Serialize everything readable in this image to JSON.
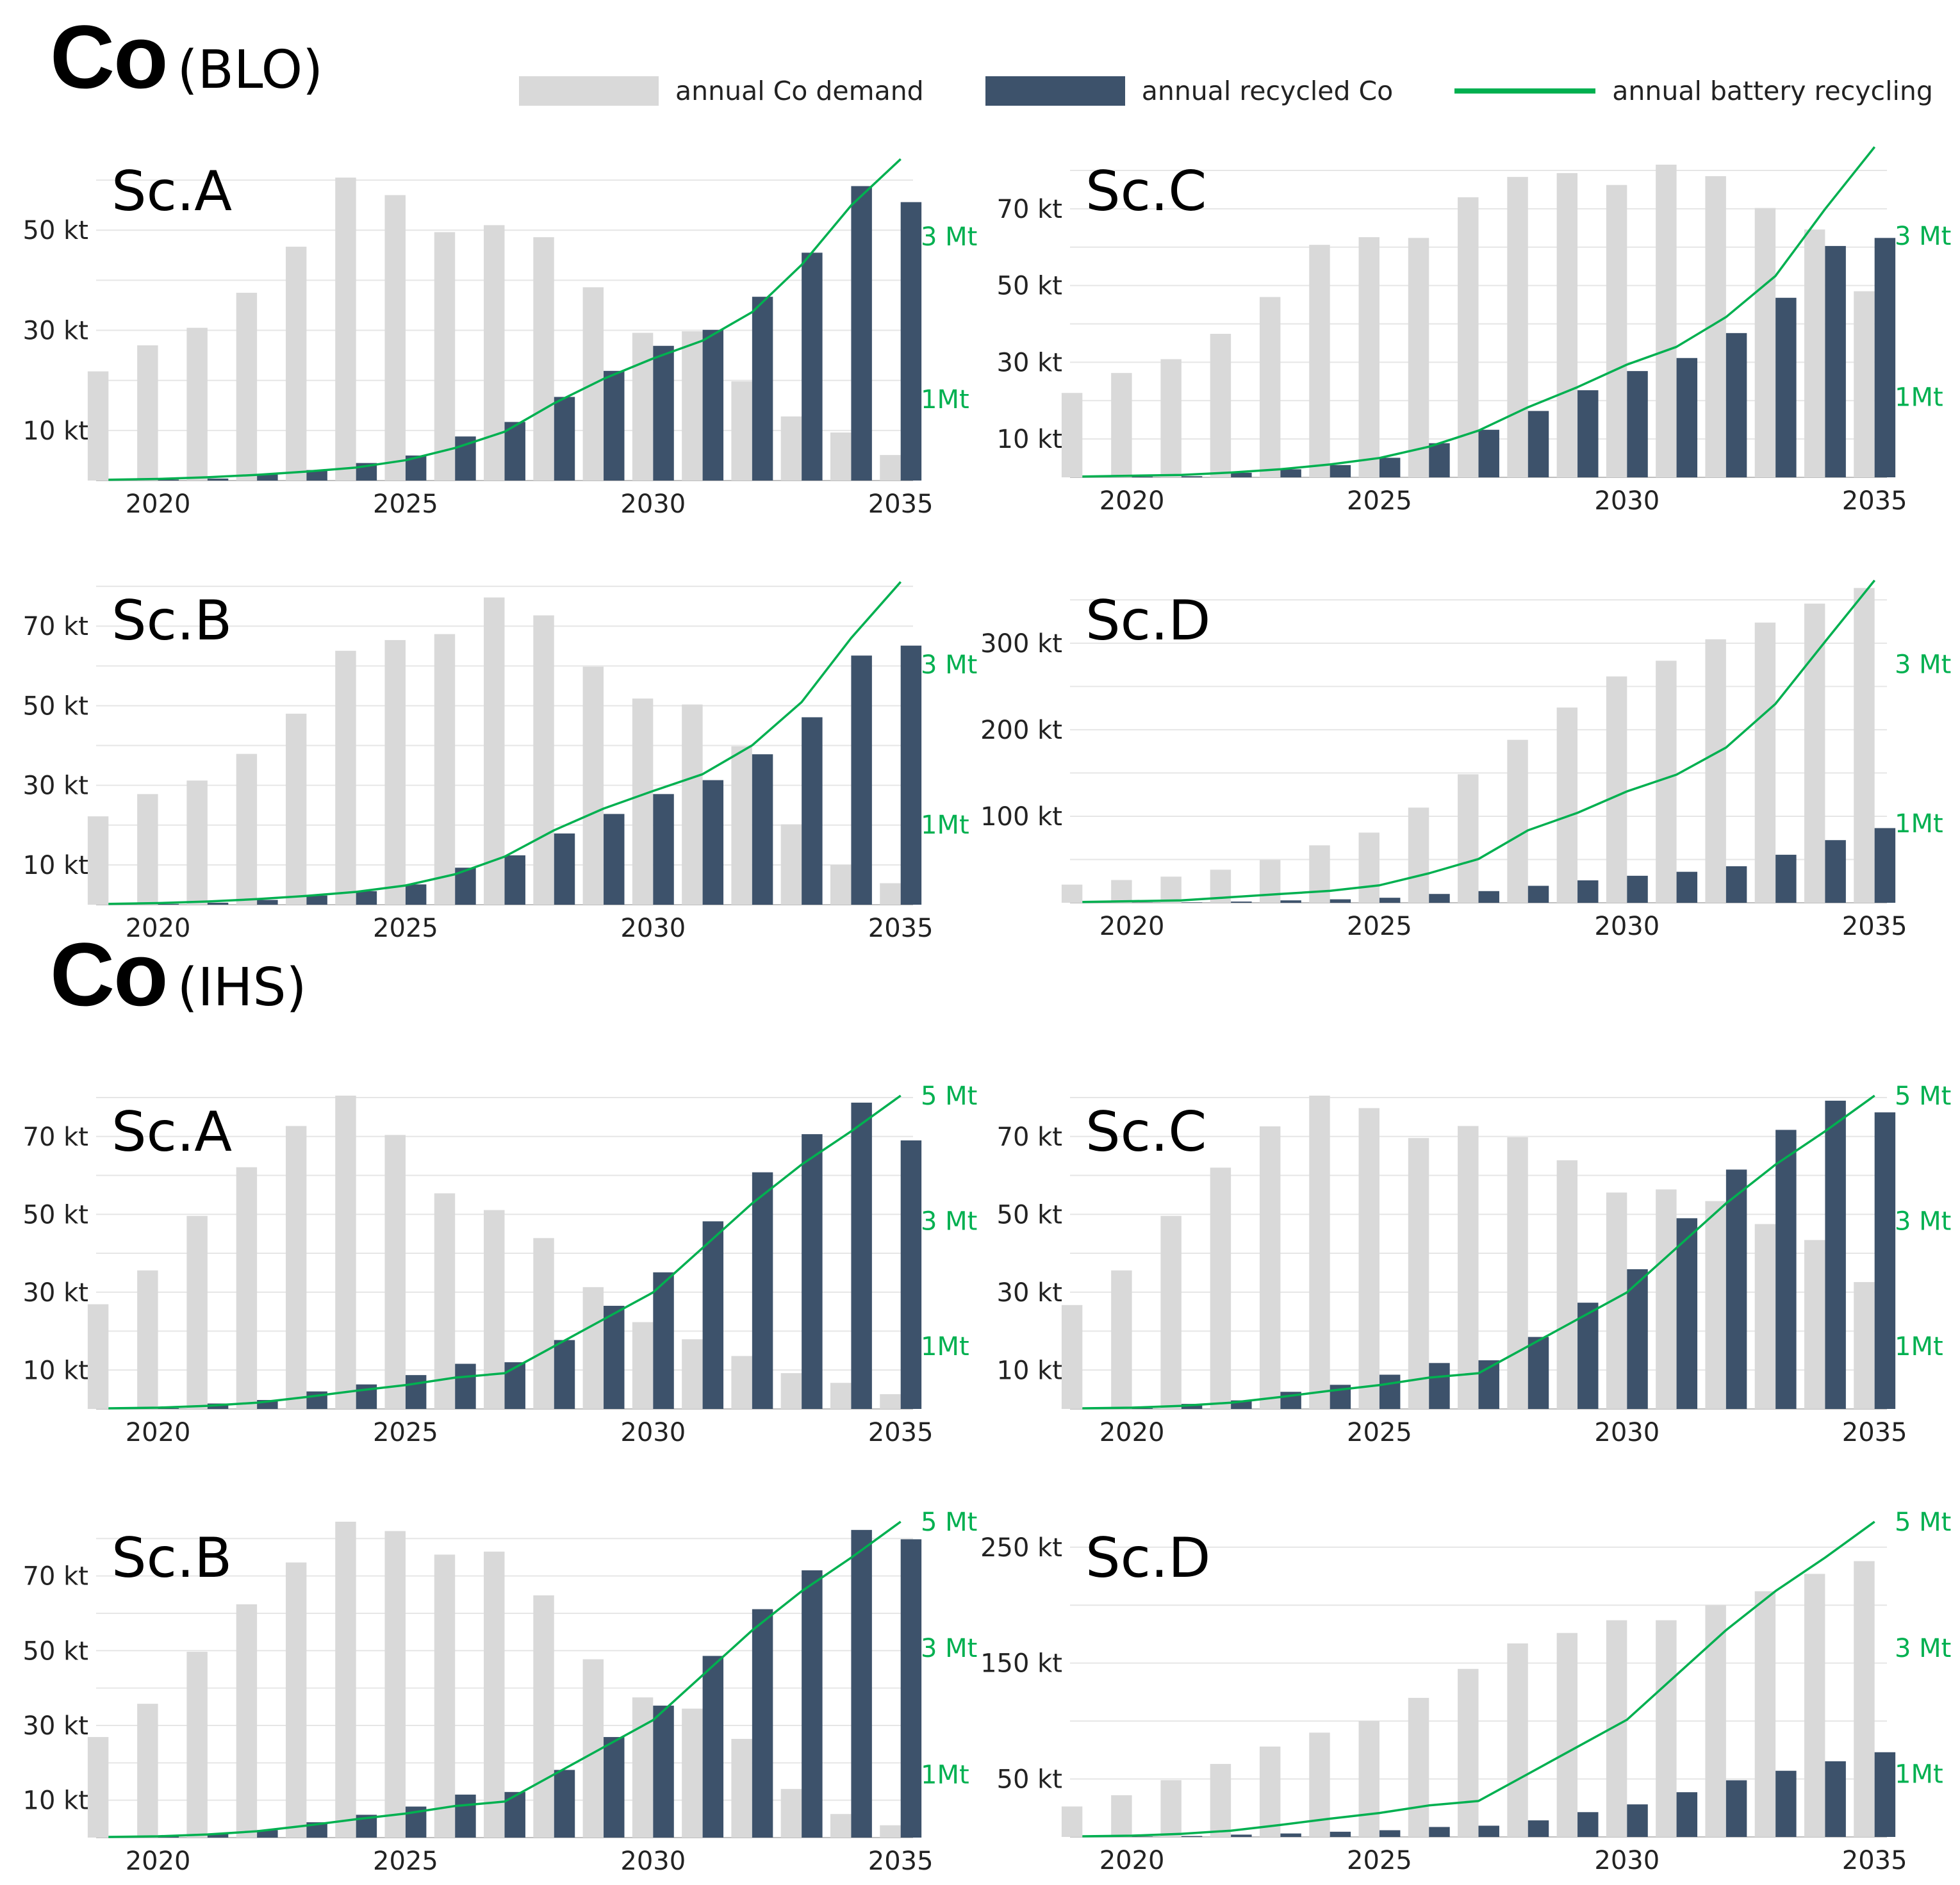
{
  "sections": [
    {
      "id": "blo",
      "element": "Co",
      "source": "(BLO)"
    },
    {
      "id": "ihs",
      "element": "Co",
      "source": "(IHS)"
    }
  ],
  "legend": {
    "demand": "annual Co demand",
    "recycled": "annual recycled Co",
    "battery": "annual battery recycling"
  },
  "colors": {
    "demand": "#d9d9d9",
    "recycled": "#3d526b",
    "battery": "#00b050",
    "grid": "#e6e6e6",
    "text": "#222222"
  },
  "chart_data": [
    {
      "type": "bar",
      "section": "blo",
      "title": "Sc.A",
      "years": [
        2019,
        2020,
        2021,
        2022,
        2023,
        2024,
        2025,
        2026,
        2027,
        2028,
        2029,
        2030,
        2031,
        2032,
        2033,
        2034,
        2035
      ],
      "x_ticks": [
        "2020",
        "2025",
        "2030",
        "2035"
      ],
      "y_ticks": [
        {
          "v": 10,
          "label": "10 kt"
        },
        {
          "v": 30,
          "label": "30 kt"
        },
        {
          "v": 50,
          "label": "50 kt"
        }
      ],
      "ylim": [
        0,
        65
      ],
      "y2lim": [
        0,
        4.0
      ],
      "y2_ticks": [
        {
          "v": 1,
          "label": "1Mt"
        },
        {
          "v": 3,
          "label": "3 Mt"
        }
      ],
      "series": [
        {
          "name": "annual Co demand",
          "values": [
            21.8,
            27,
            30.5,
            37.5,
            46.7,
            60.5,
            57,
            49.6,
            51,
            48.6,
            38.6,
            29.5,
            29.8,
            19.8,
            12.8,
            9.6,
            5.1
          ]
        },
        {
          "name": "annual recycled Co",
          "values": [
            0.1,
            0.2,
            0.4,
            1.2,
            2.1,
            3.5,
            5,
            8.8,
            11.7,
            16.7,
            21.9,
            26.9,
            30.1,
            36.7,
            45.5,
            58.8,
            55.6
          ]
        },
        {
          "name": "annual battery recycling",
          "values": [
            0.01,
            0.02,
            0.04,
            0.07,
            0.11,
            0.16,
            0.25,
            0.4,
            0.6,
            0.95,
            1.25,
            1.5,
            1.72,
            2.07,
            2.65,
            3.38,
            3.95
          ]
        }
      ]
    },
    {
      "type": "bar",
      "section": "blo",
      "title": "Sc.C",
      "years": [
        2019,
        2020,
        2021,
        2022,
        2023,
        2024,
        2025,
        2026,
        2027,
        2028,
        2029,
        2030,
        2031,
        2032,
        2033,
        2034,
        2035
      ],
      "x_ticks": [
        "2020",
        "2025",
        "2030",
        "2035"
      ],
      "y_ticks": [
        {
          "v": 10,
          "label": "10 kt"
        },
        {
          "v": 30,
          "label": "30 kt"
        },
        {
          "v": 50,
          "label": "50 kt"
        },
        {
          "v": 70,
          "label": "70 kt"
        }
      ],
      "ylim": [
        0,
        84
      ],
      "y2lim": [
        0,
        4.0
      ],
      "y2_ticks": [
        {
          "v": 1,
          "label": "1Mt"
        },
        {
          "v": 3,
          "label": "3 Mt"
        }
      ],
      "series": [
        {
          "name": "annual Co demand",
          "values": [
            22,
            27.2,
            30.8,
            37.4,
            47,
            60.6,
            62.6,
            62.4,
            73,
            78.3,
            79.3,
            76.2,
            81.5,
            78.5,
            70.2,
            64.6,
            48.5
          ]
        },
        {
          "name": "annual recycled Co",
          "values": [
            0.1,
            0.2,
            0.3,
            1.2,
            2.1,
            3.2,
            5.1,
            8.9,
            12.4,
            17.3,
            22.7,
            27.7,
            31.1,
            37.6,
            46.8,
            60.3,
            62.4
          ]
        },
        {
          "name": "annual battery recycling",
          "values": [
            0.01,
            0.02,
            0.03,
            0.06,
            0.1,
            0.16,
            0.24,
            0.38,
            0.58,
            0.87,
            1.12,
            1.4,
            1.62,
            1.99,
            2.5,
            3.33,
            4.1
          ]
        }
      ]
    },
    {
      "type": "bar",
      "section": "blo",
      "title": "Sc.B",
      "years": [
        2019,
        2020,
        2021,
        2022,
        2023,
        2024,
        2025,
        2026,
        2027,
        2028,
        2029,
        2030,
        2031,
        2032,
        2033,
        2034,
        2035
      ],
      "x_ticks": [
        "2020",
        "2025",
        "2030",
        "2035"
      ],
      "y_ticks": [
        {
          "v": 10,
          "label": "10 kt"
        },
        {
          "v": 30,
          "label": "30 kt"
        },
        {
          "v": 50,
          "label": "50 kt"
        },
        {
          "v": 70,
          "label": "70 kt"
        }
      ],
      "ylim": [
        0,
        80.5
      ],
      "y2lim": [
        0,
        4.0
      ],
      "y2_ticks": [
        {
          "v": 1,
          "label": "1Mt"
        },
        {
          "v": 3,
          "label": "3 Mt"
        }
      ],
      "series": [
        {
          "name": "annual Co demand",
          "values": [
            22.2,
            27.8,
            31.2,
            37.9,
            48,
            63.8,
            66.5,
            68,
            77.2,
            72.7,
            59.8,
            51.8,
            50.3,
            39.8,
            20.2,
            10,
            5.4
          ]
        },
        {
          "name": "annual recycled Co",
          "values": [
            0.1,
            0.2,
            0.5,
            1.2,
            2.3,
            3.4,
            5.1,
            9.3,
            12.4,
            17.9,
            22.8,
            27.8,
            31.3,
            37.8,
            47.1,
            62.6,
            65.1
          ]
        },
        {
          "name": "annual battery recycling",
          "values": [
            0.01,
            0.02,
            0.04,
            0.07,
            0.11,
            0.16,
            0.24,
            0.38,
            0.6,
            0.93,
            1.2,
            1.42,
            1.63,
            1.99,
            2.53,
            3.33,
            4.03
          ]
        }
      ]
    },
    {
      "type": "bar",
      "section": "blo",
      "title": "Sc.D",
      "years": [
        2019,
        2020,
        2021,
        2022,
        2023,
        2024,
        2025,
        2026,
        2027,
        2028,
        2029,
        2030,
        2031,
        2032,
        2033,
        2034,
        2035
      ],
      "x_ticks": [
        "2020",
        "2025",
        "2030",
        "2035"
      ],
      "y_ticks": [
        {
          "v": 100,
          "label": "100 kt"
        },
        {
          "v": 200,
          "label": "200 kt"
        },
        {
          "v": 300,
          "label": "300 kt"
        }
      ],
      "ylim": [
        0,
        368
      ],
      "y2lim": [
        0,
        4.0
      ],
      "y2_ticks": [
        {
          "v": 1,
          "label": "1Mt"
        },
        {
          "v": 3,
          "label": "3 Mt"
        }
      ],
      "series": [
        {
          "name": "annual Co demand",
          "values": [
            21,
            26.3,
            30.2,
            38.2,
            49.4,
            66.4,
            81.1,
            110,
            148.5,
            188.3,
            225.6,
            261.6,
            279.7,
            304.5,
            323.8,
            345.7,
            363.8
          ]
        },
        {
          "name": "annual recycled Co",
          "values": [
            0.1,
            0.2,
            0.4,
            1.4,
            2.8,
            4,
            5.8,
            10.2,
            13.5,
            19.6,
            25.9,
            31.2,
            35.8,
            42.2,
            55.5,
            72.4,
            86.3
          ]
        },
        {
          "name": "annual battery recycling",
          "values": [
            0.01,
            0.02,
            0.03,
            0.07,
            0.11,
            0.15,
            0.22,
            0.37,
            0.55,
            0.91,
            1.13,
            1.4,
            1.61,
            1.95,
            2.5,
            3.28,
            4.05
          ]
        }
      ]
    },
    {
      "type": "bar",
      "section": "ihs",
      "title": "Sc.A",
      "years": [
        2019,
        2020,
        2021,
        2022,
        2023,
        2024,
        2025,
        2026,
        2027,
        2028,
        2029,
        2030,
        2031,
        2032,
        2033,
        2034,
        2035
      ],
      "x_ticks": [
        "2020",
        "2025",
        "2030",
        "2035"
      ],
      "y_ticks": [
        {
          "v": 10,
          "label": "10 kt"
        },
        {
          "v": 30,
          "label": "30 kt"
        },
        {
          "v": 50,
          "label": "50 kt"
        },
        {
          "v": 70,
          "label": "70 kt"
        }
      ],
      "ylim": [
        0,
        80.5
      ],
      "y2lim": [
        0,
        5.0
      ],
      "y2_ticks": [
        {
          "v": 1,
          "label": "1Mt"
        },
        {
          "v": 3,
          "label": "3 Mt"
        },
        {
          "v": 5,
          "label": "5 Mt"
        }
      ],
      "series": [
        {
          "name": "annual Co demand",
          "values": [
            26.9,
            35.6,
            49.6,
            62.1,
            72.7,
            80.5,
            70.4,
            55.4,
            51.1,
            43.9,
            31.3,
            22.3,
            17.9,
            13.6,
            9.2,
            6.7,
            3.8
          ]
        },
        {
          "name": "annual recycled Co",
          "values": [
            0.1,
            0.2,
            1.4,
            2.3,
            4.5,
            6.3,
            8.7,
            11.6,
            12,
            17.7,
            26.5,
            35.1,
            48.2,
            60.8,
            70.6,
            78.7,
            69
          ]
        },
        {
          "name": "annual battery recycling",
          "values": [
            0.01,
            0.02,
            0.05,
            0.1,
            0.19,
            0.29,
            0.38,
            0.5,
            0.57,
            1.0,
            1.43,
            1.86,
            2.57,
            3.28,
            3.9,
            4.43,
            5.0
          ]
        }
      ]
    },
    {
      "type": "bar",
      "section": "ihs",
      "title": "Sc.C",
      "years": [
        2019,
        2020,
        2021,
        2022,
        2023,
        2024,
        2025,
        2026,
        2027,
        2028,
        2029,
        2030,
        2031,
        2032,
        2033,
        2034,
        2035
      ],
      "x_ticks": [
        "2020",
        "2025",
        "2030",
        "2035"
      ],
      "y_ticks": [
        {
          "v": 10,
          "label": "10 kt"
        },
        {
          "v": 30,
          "label": "30 kt"
        },
        {
          "v": 50,
          "label": "50 kt"
        },
        {
          "v": 70,
          "label": "70 kt"
        }
      ],
      "ylim": [
        0,
        80.5
      ],
      "y2lim": [
        0,
        5.0
      ],
      "y2_ticks": [
        {
          "v": 1,
          "label": "1Mt"
        },
        {
          "v": 3,
          "label": "3 Mt"
        },
        {
          "v": 5,
          "label": "5 Mt"
        }
      ],
      "series": [
        {
          "name": "annual Co demand",
          "values": [
            26.7,
            35.6,
            49.6,
            62,
            72.6,
            80.5,
            77.3,
            69.6,
            72.7,
            69.8,
            63.9,
            55.6,
            56.4,
            53.4,
            47.5,
            43.4,
            32.6
          ]
        },
        {
          "name": "annual recycled Co",
          "values": [
            0.1,
            0.2,
            1.3,
            2.2,
            4.4,
            6.2,
            8.8,
            11.8,
            12.5,
            18.5,
            27.3,
            35.9,
            49,
            61.5,
            71.7,
            79.2,
            76.2
          ]
        },
        {
          "name": "annual battery recycling",
          "values": [
            0.01,
            0.02,
            0.05,
            0.1,
            0.19,
            0.29,
            0.38,
            0.5,
            0.57,
            1.0,
            1.43,
            1.86,
            2.57,
            3.28,
            3.9,
            4.43,
            5.0
          ]
        }
      ]
    },
    {
      "type": "bar",
      "section": "ihs",
      "title": "Sc.B",
      "years": [
        2019,
        2020,
        2021,
        2022,
        2023,
        2024,
        2025,
        2026,
        2027,
        2028,
        2029,
        2030,
        2031,
        2032,
        2033,
        2034,
        2035
      ],
      "x_ticks": [
        "2020",
        "2025",
        "2030",
        "2035"
      ],
      "y_ticks": [
        {
          "v": 10,
          "label": "10 kt"
        },
        {
          "v": 30,
          "label": "30 kt"
        },
        {
          "v": 50,
          "label": "50 kt"
        },
        {
          "v": 70,
          "label": "70 kt"
        }
      ],
      "ylim": [
        0,
        84.5
      ],
      "y2lim": [
        0,
        5.0
      ],
      "y2_ticks": [
        {
          "v": 1,
          "label": "1Mt"
        },
        {
          "v": 3,
          "label": "3 Mt"
        },
        {
          "v": 5,
          "label": "5 Mt"
        }
      ],
      "series": [
        {
          "name": "annual Co demand",
          "values": [
            26.9,
            35.8,
            49.7,
            62.4,
            73.6,
            84.5,
            82,
            75.7,
            76.5,
            64.8,
            47.7,
            37.5,
            34.5,
            26.4,
            13,
            6.3,
            3.3
          ]
        },
        {
          "name": "annual recycled Co",
          "values": [
            0.1,
            0.3,
            1.1,
            2,
            4.1,
            6.1,
            8.3,
            11.5,
            12.2,
            18.1,
            26.9,
            35.3,
            48.6,
            61.1,
            71.5,
            82.3,
            79.8
          ]
        },
        {
          "name": "annual battery recycling",
          "values": [
            0.01,
            0.02,
            0.05,
            0.1,
            0.19,
            0.29,
            0.38,
            0.5,
            0.57,
            1.0,
            1.43,
            1.86,
            2.57,
            3.28,
            3.9,
            4.43,
            5.0
          ]
        }
      ]
    },
    {
      "type": "bar",
      "section": "ihs",
      "title": "Sc.D",
      "years": [
        2019,
        2020,
        2021,
        2022,
        2023,
        2024,
        2025,
        2026,
        2027,
        2028,
        2029,
        2030,
        2031,
        2032,
        2033,
        2034,
        2035
      ],
      "x_ticks": [
        "2020",
        "2025",
        "2030",
        "2035"
      ],
      "y_ticks": [
        {
          "v": 50,
          "label": "50 kt"
        },
        {
          "v": 150,
          "label": "150 kt"
        },
        {
          "v": 250,
          "label": "250 kt"
        }
      ],
      "ylim": [
        0,
        272
      ],
      "y2lim": [
        0,
        5.0
      ],
      "y2_ticks": [
        {
          "v": 1,
          "label": "1Mt"
        },
        {
          "v": 3,
          "label": "3 Mt"
        },
        {
          "v": 5,
          "label": "5 Mt"
        }
      ],
      "series": [
        {
          "name": "annual Co demand",
          "values": [
            26.3,
            36,
            49,
            63,
            78,
            90,
            100,
            120,
            145,
            167,
            176,
            187,
            187,
            200,
            212,
            227,
            238
          ]
        },
        {
          "name": "annual recycled Co",
          "values": [
            0.1,
            0.3,
            0.8,
            2,
            3,
            4.5,
            5.8,
            8.6,
            9.7,
            14.3,
            21.4,
            28.1,
            38.6,
            48.9,
            57.1,
            65.3,
            73.1
          ]
        },
        {
          "name": "annual battery recycling",
          "values": [
            0.01,
            0.02,
            0.05,
            0.1,
            0.19,
            0.29,
            0.38,
            0.5,
            0.57,
            1.0,
            1.43,
            1.86,
            2.57,
            3.28,
            3.9,
            4.43,
            5.0
          ]
        }
      ]
    }
  ]
}
